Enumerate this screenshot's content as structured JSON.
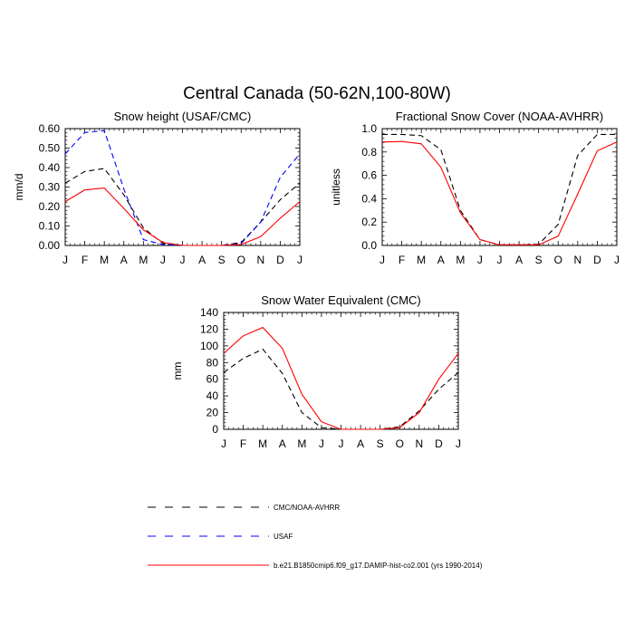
{
  "figure": {
    "title": "Central Canada (50-62N,100-80W)"
  },
  "legend": {
    "position": "bottom",
    "entries": [
      {
        "label": "CMC/NOAA-AVHRR",
        "color": "#000000",
        "dash": "dashed"
      },
      {
        "label": "USAF",
        "color": "#0000ff",
        "dash": "dashed"
      },
      {
        "label": "b.e21.B1850cmip6.f09_g17.DAMIP-hist-co2.001 (yrs 1990-2014)",
        "color": "#ff0000",
        "dash": "solid"
      }
    ]
  },
  "chart_data": [
    {
      "type": "line",
      "title": "Snow height (USAF/CMC)",
      "xlabel": "",
      "ylabel": "mm/d",
      "categories": [
        "J",
        "F",
        "M",
        "A",
        "M",
        "J",
        "J",
        "A",
        "S",
        "O",
        "N",
        "D",
        "J"
      ],
      "ylim": [
        0,
        0.6
      ],
      "yticks": [
        "0.00",
        "0.10",
        "0.20",
        "0.30",
        "0.40",
        "0.50",
        "0.60"
      ],
      "grid": false,
      "series": [
        {
          "name": "CMC/NOAA-AVHRR",
          "color": "#000000",
          "dash": "dashed",
          "values": [
            0.32,
            0.38,
            0.395,
            0.26,
            0.09,
            0.01,
            0.0,
            0.0,
            0.0,
            0.015,
            0.12,
            0.235,
            0.32
          ]
        },
        {
          "name": "USAF",
          "color": "#0000ff",
          "dash": "dashed",
          "values": [
            0.47,
            0.58,
            0.59,
            0.29,
            0.03,
            0.005,
            0.0,
            0.0,
            0.0,
            0.01,
            0.12,
            0.35,
            0.47
          ]
        },
        {
          "name": "b.e21.B1850cmip6.f09_g17.DAMIP-hist-co2.001 (yrs 1990-2014)",
          "color": "#ff0000",
          "dash": "solid",
          "values": [
            0.225,
            0.285,
            0.295,
            0.19,
            0.08,
            0.015,
            0.0,
            0.0,
            0.0,
            0.005,
            0.045,
            0.14,
            0.225
          ]
        }
      ]
    },
    {
      "type": "line",
      "title": "Fractional Snow Cover (NOAA-AVHRR)",
      "xlabel": "",
      "ylabel": "unitless",
      "categories": [
        "J",
        "F",
        "M",
        "A",
        "M",
        "J",
        "J",
        "A",
        "S",
        "O",
        "N",
        "D",
        "J"
      ],
      "ylim": [
        0,
        1.0
      ],
      "yticks": [
        "0.0",
        "0.2",
        "0.4",
        "0.6",
        "0.8",
        "1.0"
      ],
      "grid": false,
      "series": [
        {
          "name": "CMC/NOAA-AVHRR",
          "color": "#000000",
          "dash": "dashed",
          "values": [
            0.95,
            0.95,
            0.94,
            0.82,
            0.3,
            0.05,
            0.005,
            0.005,
            0.01,
            0.18,
            0.77,
            0.95,
            0.95
          ]
        },
        {
          "name": "b.e21.B1850cmip6.f09_g17.DAMIP-hist-co2.001 (yrs 1990-2014)",
          "color": "#ff0000",
          "dash": "solid",
          "values": [
            0.885,
            0.89,
            0.87,
            0.67,
            0.28,
            0.05,
            0.005,
            0.005,
            0.005,
            0.08,
            0.44,
            0.81,
            0.885
          ]
        }
      ]
    },
    {
      "type": "line",
      "title": "Snow Water Equivalent (CMC)",
      "xlabel": "",
      "ylabel": "mm",
      "categories": [
        "J",
        "F",
        "M",
        "A",
        "M",
        "J",
        "J",
        "A",
        "S",
        "O",
        "N",
        "D",
        "J"
      ],
      "ylim": [
        0,
        140
      ],
      "yticks": [
        "0",
        "20",
        "40",
        "60",
        "80",
        "100",
        "120",
        "140"
      ],
      "grid": false,
      "series": [
        {
          "name": "CMC/NOAA-AVHRR",
          "color": "#000000",
          "dash": "dashed",
          "values": [
            68,
            85,
            96,
            67,
            20,
            2,
            0,
            0,
            0,
            3,
            22,
            48,
            68
          ]
        },
        {
          "name": "b.e21.B1850cmip6.f09_g17.DAMIP-hist-co2.001 (yrs 1990-2014)",
          "color": "#ff0000",
          "dash": "solid",
          "values": [
            91,
            112,
            122,
            97,
            42,
            9,
            0,
            0,
            0,
            2,
            20,
            60,
            91
          ]
        }
      ]
    }
  ]
}
